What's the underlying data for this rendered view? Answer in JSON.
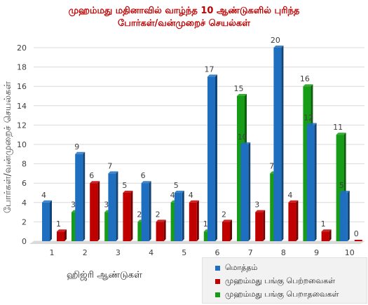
{
  "title_lines": [
    "முஹம்மது மதினாவில் வாழ்ந்த 10 ஆண்டுகளில் புரிந்த",
    "போர்கள்/வன்முறைச் செயல்கள்"
  ],
  "colors": {
    "series": [
      "#1f6fc0",
      "#c00000",
      "#169c16"
    ],
    "title": "#c00000",
    "grid": "#d9d9d9"
  },
  "chart_data": {
    "type": "bar",
    "title": "முஹம்மது மதினாவில் வாழ்ந்த 10 ஆண்டுகளில் புரிந்த போர்கள்/வன்முறைச் செயல்கள்",
    "xlabel": "ஹிஜ்ரி ஆண்டுகள்",
    "ylabel": "போர்கள்/வன்முறைச் செயல்கள்",
    "categories": [
      "1",
      "2",
      "3",
      "4",
      "5",
      "6",
      "7",
      "8",
      "9",
      "10"
    ],
    "ylim": [
      0,
      20
    ],
    "yticks": [
      0,
      2,
      4,
      6,
      8,
      10,
      12,
      14,
      16,
      18,
      20
    ],
    "grid": true,
    "legend_position": "bottom-right",
    "series": [
      {
        "name": "மொத்தம்",
        "values": [
          4,
          9,
          7,
          6,
          5,
          17,
          10,
          20,
          12,
          5
        ]
      },
      {
        "name": "முஹம்மது பங்கு பெற்றவைகள்",
        "values": [
          1,
          6,
          5,
          2,
          4,
          2,
          3,
          4,
          1,
          0
        ]
      },
      {
        "name": "முஹம்மது பங்கு பெறாதவைகள்",
        "values": [
          3,
          3,
          2,
          4,
          1,
          15,
          7,
          16,
          11,
          5
        ]
      }
    ]
  }
}
